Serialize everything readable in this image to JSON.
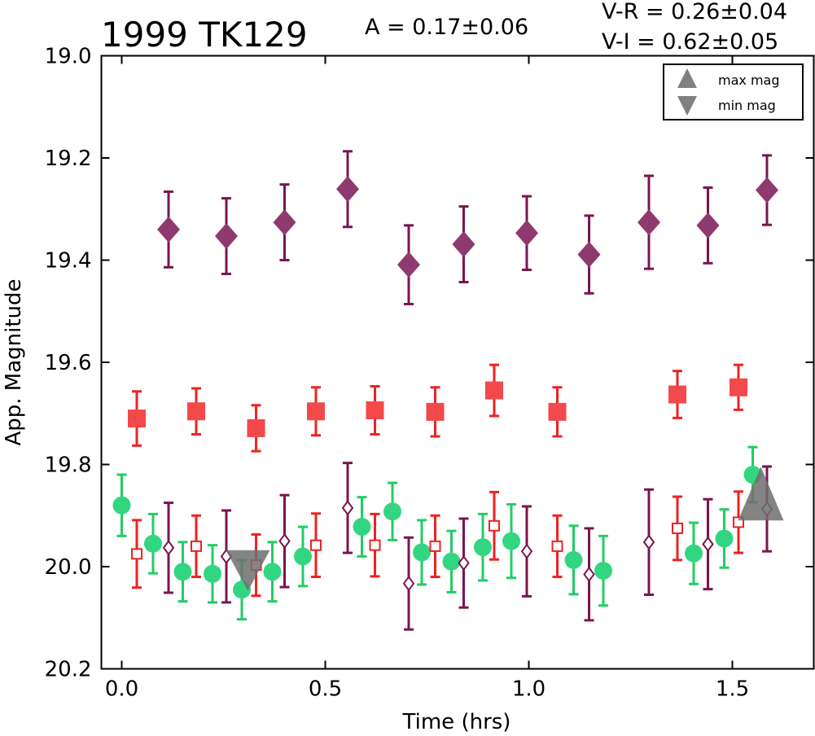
{
  "chart_data": {
    "type": "scatter",
    "title": "1999 TK129",
    "amplitude_text": "A  = 0.17±0.06",
    "color_index_text": [
      "V-R = 0.26±0.04",
      "V-I  = 0.62±0.05"
    ],
    "xlabel": "Time (hrs)",
    "ylabel": "App. Magnitude",
    "xlim": [
      -0.05,
      1.7
    ],
    "ylim": [
      20.2,
      19.0
    ],
    "y_inverted": true,
    "xticks": [
      "0.0",
      "0.5",
      "1.0",
      "1.5"
    ],
    "yticks": [
      "19.0",
      "19.2",
      "19.4",
      "19.6",
      "19.8",
      "20.0",
      "20.2"
    ],
    "legend": {
      "placement": "top-right",
      "entries": [
        {
          "label": "max mag",
          "symbol": "up-triangle"
        },
        {
          "label": "min mag",
          "symbol": "down-triangle"
        }
      ]
    },
    "colors": {
      "purple": "#7b1450",
      "purple_fill": "#8e3a6e",
      "red": "#ee2222",
      "red_fill": "#f24a4a",
      "green": "#22cc66",
      "green_fill": "#33d680",
      "marker_gray": "#6e6e6e"
    },
    "series": [
      {
        "marker": "filled-diamond",
        "color": "purple",
        "points": [
          {
            "x": 0.115,
            "y": 19.34,
            "err": 0.074
          },
          {
            "x": 0.257,
            "y": 19.353,
            "err": 0.074
          },
          {
            "x": 0.4,
            "y": 19.326,
            "err": 0.074
          },
          {
            "x": 0.555,
            "y": 19.261,
            "err": 0.074
          },
          {
            "x": 0.705,
            "y": 19.409,
            "err": 0.077
          },
          {
            "x": 0.84,
            "y": 19.369,
            "err": 0.074
          },
          {
            "x": 0.995,
            "y": 19.347,
            "err": 0.072
          },
          {
            "x": 1.148,
            "y": 19.389,
            "err": 0.076
          },
          {
            "x": 1.295,
            "y": 19.326,
            "err": 0.091
          },
          {
            "x": 1.44,
            "y": 19.332,
            "err": 0.074
          },
          {
            "x": 1.585,
            "y": 19.263,
            "err": 0.068
          }
        ]
      },
      {
        "marker": "filled-square",
        "color": "red",
        "points": [
          {
            "x": 0.037,
            "y": 19.71,
            "err": 0.053
          },
          {
            "x": 0.183,
            "y": 19.696,
            "err": 0.045
          },
          {
            "x": 0.33,
            "y": 19.729,
            "err": 0.045
          },
          {
            "x": 0.477,
            "y": 19.696,
            "err": 0.047
          },
          {
            "x": 0.622,
            "y": 19.694,
            "err": 0.047
          },
          {
            "x": 0.77,
            "y": 19.697,
            "err": 0.048
          },
          {
            "x": 0.915,
            "y": 19.655,
            "err": 0.05
          },
          {
            "x": 1.07,
            "y": 19.697,
            "err": 0.048
          },
          {
            "x": 1.365,
            "y": 19.663,
            "err": 0.046
          },
          {
            "x": 1.515,
            "y": 19.649,
            "err": 0.044
          }
        ]
      },
      {
        "marker": "filled-circle",
        "color": "green",
        "points": [
          {
            "x": 0.0,
            "y": 19.88,
            "err": 0.06
          },
          {
            "x": 0.077,
            "y": 19.955,
            "err": 0.058
          },
          {
            "x": 0.15,
            "y": 20.01,
            "err": 0.058
          },
          {
            "x": 0.223,
            "y": 20.014,
            "err": 0.056
          },
          {
            "x": 0.295,
            "y": 20.045,
            "err": 0.058
          },
          {
            "x": 0.37,
            "y": 20.01,
            "err": 0.058
          },
          {
            "x": 0.445,
            "y": 19.98,
            "err": 0.058
          },
          {
            "x": 0.59,
            "y": 19.922,
            "err": 0.058
          },
          {
            "x": 0.665,
            "y": 19.892,
            "err": 0.056
          },
          {
            "x": 0.737,
            "y": 19.972,
            "err": 0.063
          },
          {
            "x": 0.81,
            "y": 19.99,
            "err": 0.06
          },
          {
            "x": 0.887,
            "y": 19.962,
            "err": 0.065
          },
          {
            "x": 0.957,
            "y": 19.95,
            "err": 0.072
          },
          {
            "x": 1.11,
            "y": 19.987,
            "err": 0.067
          },
          {
            "x": 1.183,
            "y": 20.008,
            "err": 0.068
          },
          {
            "x": 1.405,
            "y": 19.974,
            "err": 0.06
          },
          {
            "x": 1.48,
            "y": 19.945,
            "err": 0.057
          },
          {
            "x": 1.55,
            "y": 19.82,
            "err": 0.054
          }
        ]
      },
      {
        "marker": "open-square",
        "color": "red",
        "points": [
          {
            "x": 0.037,
            "y": 19.975,
            "err": 0.066
          },
          {
            "x": 0.183,
            "y": 19.96,
            "err": 0.06
          },
          {
            "x": 0.33,
            "y": 19.997,
            "err": 0.06
          },
          {
            "x": 0.477,
            "y": 19.958,
            "err": 0.062
          },
          {
            "x": 0.622,
            "y": 19.958,
            "err": 0.061
          },
          {
            "x": 0.77,
            "y": 19.96,
            "err": 0.06
          },
          {
            "x": 0.915,
            "y": 19.92,
            "err": 0.066
          },
          {
            "x": 1.07,
            "y": 19.96,
            "err": 0.06
          },
          {
            "x": 1.365,
            "y": 19.925,
            "err": 0.062
          },
          {
            "x": 1.515,
            "y": 19.913,
            "err": 0.06
          }
        ]
      },
      {
        "marker": "open-diamond",
        "color": "purple",
        "points": [
          {
            "x": 0.115,
            "y": 19.963,
            "err": 0.088
          },
          {
            "x": 0.257,
            "y": 19.98,
            "err": 0.09
          },
          {
            "x": 0.4,
            "y": 19.95,
            "err": 0.09
          },
          {
            "x": 0.555,
            "y": 19.885,
            "err": 0.088
          },
          {
            "x": 0.705,
            "y": 20.033,
            "err": 0.09
          },
          {
            "x": 0.84,
            "y": 19.993,
            "err": 0.087
          },
          {
            "x": 0.995,
            "y": 19.97,
            "err": 0.088
          },
          {
            "x": 1.148,
            "y": 20.015,
            "err": 0.09
          },
          {
            "x": 1.295,
            "y": 19.952,
            "err": 0.103
          },
          {
            "x": 1.44,
            "y": 19.956,
            "err": 0.088
          },
          {
            "x": 1.585,
            "y": 19.887,
            "err": 0.083
          }
        ]
      }
    ],
    "extrema_markers": [
      {
        "type": "max mag",
        "symbol": "up-triangle",
        "x": 1.57,
        "y": 19.865
      },
      {
        "type": "min mag",
        "symbol": "down-triangle",
        "x": 0.31,
        "y": 19.99
      }
    ]
  }
}
